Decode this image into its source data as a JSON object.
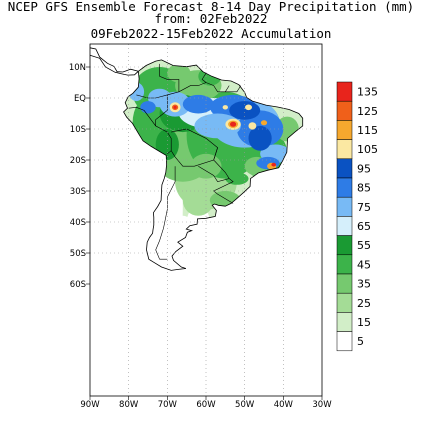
{
  "header": {
    "line1": "NCEP GFS Ensemble Forecast 8-14 Day Precipitation (mm)",
    "line2": "from: 02Feb2022",
    "line3": "09Feb2022-15Feb2022 Accumulation"
  },
  "map": {
    "lat_labels": [
      "10N",
      "EQ",
      "10S",
      "20S",
      "30S",
      "40S",
      "50S",
      "60S"
    ],
    "lon_labels": [
      "90W",
      "80W",
      "70W",
      "60W",
      "50W",
      "40W",
      "30W"
    ],
    "grid": true
  },
  "colors": {
    "ocean": "#ffffff",
    "land_base": "#ffffff",
    "coast": "#000000",
    "grid": "#999999"
  },
  "legend": {
    "levels": [
      {
        "label": "135",
        "color": "#e8241c"
      },
      {
        "label": "125",
        "color": "#f0601a"
      },
      {
        "label": "115",
        "color": "#f6a82e"
      },
      {
        "label": "105",
        "color": "#fbe8a2"
      },
      {
        "label": "95",
        "color": "#0a52c2"
      },
      {
        "label": "85",
        "color": "#2e7ce6"
      },
      {
        "label": "75",
        "color": "#78baf5"
      },
      {
        "label": "65",
        "color": "#d5effb"
      },
      {
        "label": "55",
        "color": "#1a9a33"
      },
      {
        "label": "45",
        "color": "#3cb34a"
      },
      {
        "label": "35",
        "color": "#76c96f"
      },
      {
        "label": "25",
        "color": "#a4dc96"
      },
      {
        "label": "15",
        "color": "#d2eec8"
      },
      {
        "label": "5",
        "color": "#ffffff"
      }
    ]
  }
}
